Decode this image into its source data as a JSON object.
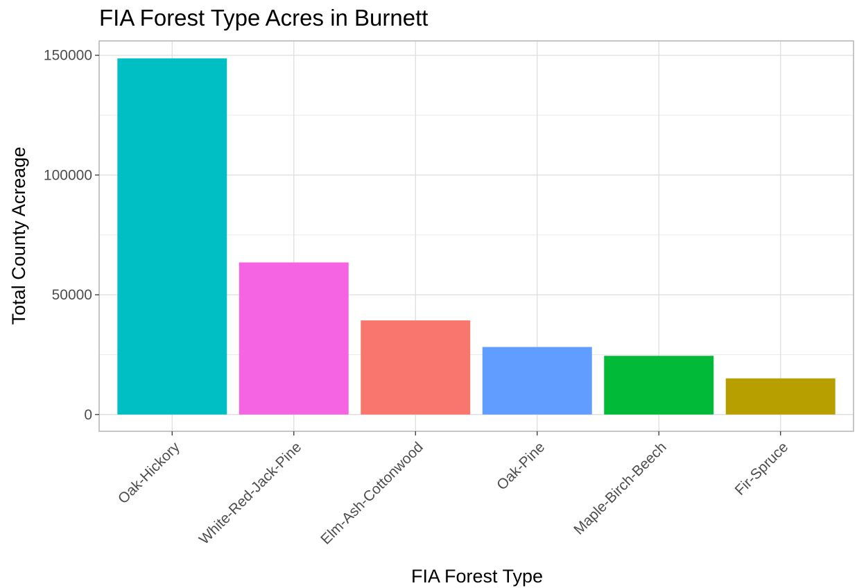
{
  "chart_data": {
    "type": "bar",
    "title": "FIA Forest Type Acres in Burnett",
    "xlabel": "FIA Forest Type",
    "ylabel": "Total County Acreage",
    "categories": [
      "Oak-Hickory",
      "White-Red-Jack-Pine",
      "Elm-Ash-Cottonwood",
      "Oak-Pine",
      "Maple-Birch-Beech",
      "Fir-Spruce"
    ],
    "values": [
      148700,
      63500,
      39300,
      28200,
      24500,
      15100
    ],
    "colors": [
      "#00BFC4",
      "#F564E3",
      "#F8766D",
      "#619CFF",
      "#00BA38",
      "#B79F00"
    ],
    "yticks": [
      0,
      50000,
      100000,
      150000
    ],
    "ytick_labels": [
      "0",
      "50000",
      "100000",
      "150000"
    ],
    "ylim": [
      -7000,
      156000
    ],
    "grid": true,
    "legend": "none"
  }
}
